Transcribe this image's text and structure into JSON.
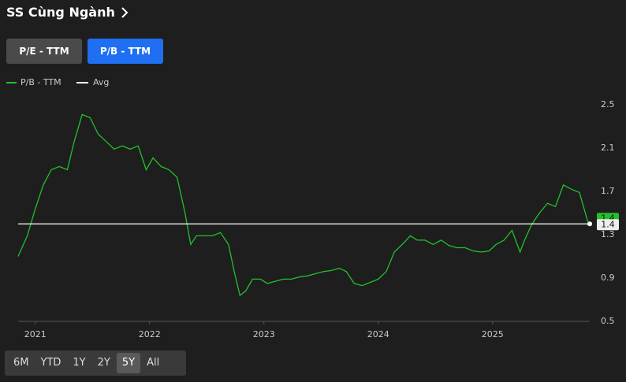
{
  "header": {
    "title": "SS Cùng Ngành"
  },
  "tabs": [
    "P/E - TTM",
    "P/B - TTM"
  ],
  "ranges": [
    "6M",
    "YTD",
    "1Y",
    "2Y",
    "5Y",
    "All"
  ],
  "chart_data": {
    "type": "line",
    "x": [
      2020.85,
      2020.93,
      2021.0,
      2021.07,
      2021.14,
      2021.21,
      2021.28,
      2021.34,
      2021.41,
      2021.48,
      2021.55,
      2021.62,
      2021.69,
      2021.76,
      2021.83,
      2021.9,
      2021.97,
      2022.03,
      2022.1,
      2022.17,
      2022.24,
      2022.31,
      2022.36,
      2022.41,
      2022.48,
      2022.55,
      2022.62,
      2022.69,
      2022.74,
      2022.79,
      2022.84,
      2022.9,
      2022.97,
      2023.03,
      2023.1,
      2023.17,
      2023.24,
      2023.31,
      2023.38,
      2023.45,
      2023.52,
      2023.59,
      2023.66,
      2023.72,
      2023.79,
      2023.86,
      2023.93,
      2024.0,
      2024.07,
      2024.14,
      2024.21,
      2024.28,
      2024.34,
      2024.41,
      2024.48,
      2024.55,
      2024.62,
      2024.69,
      2024.76,
      2024.83,
      2024.9,
      2024.97,
      2025.03,
      2025.1,
      2025.17,
      2025.24,
      2025.28,
      2025.34,
      2025.41,
      2025.48,
      2025.55,
      2025.62,
      2025.69,
      2025.76,
      2025.83,
      2025.85
    ],
    "series": [
      {
        "name": "P/B - TTM",
        "color": "#22c02a",
        "values": [
          1.1,
          1.29,
          1.54,
          1.76,
          1.9,
          1.93,
          1.9,
          2.16,
          2.41,
          2.38,
          2.23,
          2.16,
          2.09,
          2.12,
          2.09,
          2.12,
          1.9,
          2.01,
          1.93,
          1.9,
          1.83,
          1.5,
          1.21,
          1.29,
          1.29,
          1.29,
          1.32,
          1.21,
          0.96,
          0.74,
          0.78,
          0.89,
          0.89,
          0.85,
          0.87,
          0.89,
          0.89,
          0.91,
          0.92,
          0.94,
          0.96,
          0.97,
          0.99,
          0.96,
          0.85,
          0.83,
          0.86,
          0.89,
          0.96,
          1.14,
          1.21,
          1.29,
          1.25,
          1.25,
          1.21,
          1.25,
          1.2,
          1.18,
          1.18,
          1.15,
          1.14,
          1.15,
          1.21,
          1.25,
          1.34,
          1.14,
          1.25,
          1.39,
          1.5,
          1.59,
          1.56,
          1.76,
          1.72,
          1.69,
          1.43,
          1.4
        ]
      }
    ],
    "avg": {
      "name": "Avg",
      "color": "#ffffff",
      "value": 1.4
    },
    "xlim": [
      2020.85,
      2025.85
    ],
    "xticks": [
      2021,
      2022,
      2023,
      2024,
      2025
    ],
    "ylim": [
      0.5,
      2.5
    ],
    "yticks": [
      0.5,
      0.9,
      1.3,
      1.7,
      2.1,
      2.5
    ]
  }
}
